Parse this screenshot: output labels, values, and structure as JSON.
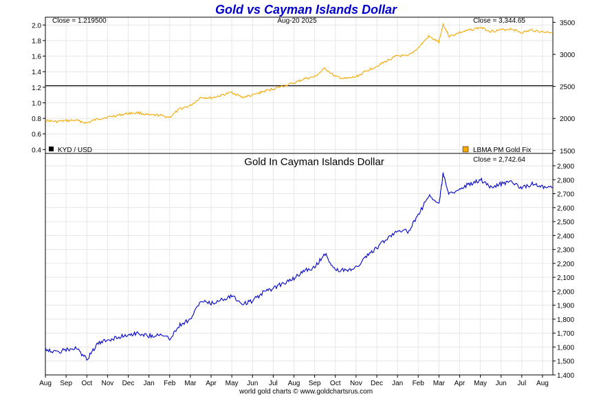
{
  "title": "Gold vs Cayman Islands Dollar",
  "footer": "world gold charts © www.goldchartsrus.com",
  "colors": {
    "title": "#0000cc",
    "fx_line": "#000000",
    "gold_top": "#f5a800",
    "gold_kyd": "#0000cc",
    "grid": "#e6e6e6"
  },
  "top_panel": {
    "close_fx": "Close = 1.219500",
    "date": "Aug-20  2025",
    "close_gold": "Close = 3,344.65",
    "legend_fx": "KYD / USD",
    "legend_gold": "LBMA PM Gold Fix"
  },
  "bottom_panel": {
    "title": "Gold In Cayman Islands Dollar",
    "close": "Close = 2,742.64"
  },
  "chart_data": [
    {
      "type": "line",
      "panel": "top",
      "x_labels": [
        "Aug",
        "Sep",
        "Oct",
        "Nov",
        "Dec",
        "Jan",
        "Feb",
        "Mar",
        "Apr",
        "May",
        "Jun",
        "Jul",
        "Aug",
        "Sep",
        "Oct",
        "Nov",
        "Dec",
        "Jan",
        "Feb",
        "Mar",
        "Apr",
        "May",
        "Jun",
        "Jul",
        "Aug"
      ],
      "y_left_ticks": [
        "0.4",
        "0.6",
        "0.8",
        "1.0",
        "1.2",
        "1.4",
        "1.6",
        "1.8",
        "2.0"
      ],
      "y_left_range": [
        0.35,
        2.1
      ],
      "y_right_ticks": [
        "1500",
        "2000",
        "2500",
        "3000",
        "3500"
      ],
      "y_right_range": [
        1455,
        3580
      ],
      "series": [
        {
          "name": "KYD / USD",
          "axis": "left",
          "values": [
            1.2195,
            1.2195
          ]
        },
        {
          "name": "LBMA PM Gold Fix",
          "axis": "right",
          "x": [
            0,
            0.5,
            1,
            1.5,
            2,
            2.5,
            3,
            3.5,
            4,
            4.5,
            5,
            5.5,
            6,
            6.5,
            7,
            7.5,
            8,
            8.5,
            9,
            9.5,
            10,
            10.5,
            11,
            11.5,
            12,
            12.5,
            13,
            13.5,
            14,
            14.5,
            15,
            15.5,
            16,
            16.5,
            17,
            17.5,
            18,
            18.5,
            19,
            19.2,
            19.5,
            20,
            20.5,
            21,
            21.5,
            22,
            22.5,
            23,
            23.5,
            24,
            24.5
          ],
          "values": [
            1970,
            1950,
            1965,
            1970,
            1930,
            1990,
            2020,
            2050,
            2080,
            2090,
            2050,
            2050,
            2020,
            2150,
            2200,
            2330,
            2320,
            2360,
            2410,
            2330,
            2360,
            2420,
            2460,
            2510,
            2550,
            2620,
            2650,
            2780,
            2650,
            2620,
            2650,
            2740,
            2820,
            2900,
            2980,
            2970,
            3100,
            3280,
            3190,
            3470,
            3280,
            3340,
            3380,
            3420,
            3360,
            3380,
            3400,
            3340,
            3380,
            3350,
            3345
          ]
        }
      ]
    },
    {
      "type": "line",
      "panel": "bottom",
      "title": "Gold In Cayman Islands Dollar",
      "x_labels": [
        "Aug",
        "Sep",
        "Oct",
        "Nov",
        "Dec",
        "Jan",
        "Feb",
        "Mar",
        "Apr",
        "May",
        "Jun",
        "Jul",
        "Aug",
        "Sep",
        "Oct",
        "Nov",
        "Dec",
        "Jan",
        "Feb",
        "Mar",
        "Apr",
        "May",
        "Jun",
        "Jul",
        "Aug"
      ],
      "y_ticks": [
        "1,400",
        "1,500",
        "1,600",
        "1,700",
        "1,800",
        "1,900",
        "2,000",
        "2,100",
        "2,200",
        "2,300",
        "2,400",
        "2,500",
        "2,600",
        "2,700",
        "2,800",
        "2,900"
      ],
      "ylim": [
        1400,
        2900
      ],
      "series": [
        {
          "name": "Gold In Cayman Islands Dollar",
          "x": [
            0,
            0.5,
            1,
            1.5,
            2,
            2.5,
            3,
            3.5,
            4,
            4.5,
            5,
            5.5,
            6,
            6.5,
            7,
            7.5,
            8,
            8.5,
            9,
            9.5,
            10,
            10.5,
            11,
            11.5,
            12,
            12.5,
            13,
            13.5,
            14,
            14.5,
            15,
            15.5,
            16,
            16.5,
            17,
            17.5,
            18,
            18.5,
            19,
            19.2,
            19.5,
            20,
            20.5,
            21,
            21.5,
            22,
            22.5,
            23,
            23.5,
            24,
            24.5
          ],
          "values": [
            1590,
            1560,
            1580,
            1590,
            1510,
            1620,
            1650,
            1670,
            1690,
            1700,
            1680,
            1690,
            1660,
            1760,
            1800,
            1930,
            1910,
            1940,
            1970,
            1910,
            1930,
            1990,
            2020,
            2060,
            2090,
            2150,
            2170,
            2270,
            2150,
            2150,
            2170,
            2250,
            2310,
            2380,
            2440,
            2430,
            2540,
            2690,
            2620,
            2840,
            2690,
            2740,
            2770,
            2800,
            2750,
            2770,
            2790,
            2740,
            2770,
            2750,
            2743
          ]
        }
      ]
    }
  ]
}
